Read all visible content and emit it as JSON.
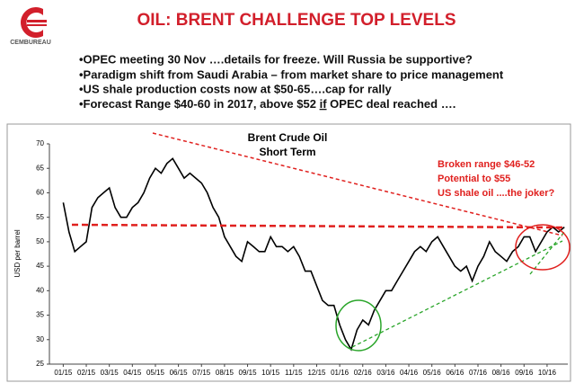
{
  "logo": "CEMBUREAU",
  "header": {
    "title": "OIL: BRENT CHALLENGE TOP LEVELS"
  },
  "bullets": [
    "•OPEC meeting 30 Nov ….details for freeze. Will Russia be supportive?",
    "•Paradigm shift from Saudi Arabia – from market share to price management",
    "•US shale production costs now at $50-65….cap for rally",
    {
      "before": "•Forecast Range $40-60  in  2017, above $52 ",
      "emphasis": "if",
      "after": " OPEC deal reached …."
    }
  ],
  "chart_data": {
    "type": "line",
    "title": "Brent Crude Oil",
    "subtitle": "Short Term",
    "y_label": "USD per barrel",
    "annotations": [
      "Broken range $46-52",
      "Potential to $55",
      "US shale oil ....the joker?"
    ],
    "x": [
      0,
      0.25,
      0.5,
      0.75,
      1,
      1.25,
      1.5,
      1.75,
      2,
      2.25,
      2.5,
      2.75,
      3,
      3.25,
      3.5,
      3.75,
      4,
      4.25,
      4.5,
      4.75,
      5,
      5.25,
      5.5,
      5.75,
      6,
      6.25,
      6.5,
      6.75,
      7,
      7.25,
      7.5,
      7.75,
      8,
      8.25,
      8.5,
      8.75,
      9,
      9.25,
      9.5,
      9.75,
      10,
      10.25,
      10.5,
      10.75,
      11,
      11.25,
      11.5,
      11.75,
      12,
      12.25,
      12.5,
      12.75,
      13,
      13.25,
      13.5,
      13.75,
      14,
      14.25,
      14.5,
      14.75,
      15,
      15.25,
      15.5,
      15.75,
      16,
      16.25,
      16.5,
      16.75,
      17,
      17.25,
      17.5,
      17.75,
      18,
      18.25,
      18.5,
      18.75,
      19,
      19.25,
      19.5,
      19.75,
      20,
      20.25,
      20.5,
      20.75,
      21,
      21.25,
      21.5,
      21.75
    ],
    "series": [
      {
        "name": "Brent",
        "color": "#000000",
        "values": [
          58,
          52,
          48,
          49,
          50,
          57,
          59,
          60,
          61,
          57,
          55,
          55,
          57,
          58,
          60,
          63,
          65,
          64,
          66,
          67,
          65,
          63,
          64,
          63,
          62,
          60,
          57,
          55,
          51,
          49,
          47,
          46,
          50,
          49,
          48,
          48,
          51,
          49,
          49,
          48,
          49,
          47,
          44,
          44,
          41,
          38,
          37,
          37,
          33,
          30,
          28,
          32,
          34,
          33,
          36,
          38,
          40,
          40,
          42,
          44,
          46,
          48,
          49,
          48,
          50,
          51,
          49,
          47,
          45,
          44,
          45,
          42,
          45,
          47,
          50,
          48,
          47,
          46,
          48,
          49,
          51,
          51,
          48,
          50,
          52,
          53,
          52,
          53
        ]
      }
    ],
    "xlim": [
      -0.6,
      21.9
    ],
    "xticks": [
      {
        "value": 0,
        "label": "01/15"
      },
      {
        "value": 1,
        "label": "02/15"
      },
      {
        "value": 2,
        "label": "03/15"
      },
      {
        "value": 3,
        "label": "04/15"
      },
      {
        "value": 4,
        "label": "05/15"
      },
      {
        "value": 5,
        "label": "06/15"
      },
      {
        "value": 6,
        "label": "07/15"
      },
      {
        "value": 7,
        "label": "08/15"
      },
      {
        "value": 8,
        "label": "09/15"
      },
      {
        "value": 9,
        "label": "10/15"
      },
      {
        "value": 10,
        "label": "11/15"
      },
      {
        "value": 11,
        "label": "12/15"
      },
      {
        "value": 12,
        "label": "01/16"
      },
      {
        "value": 13,
        "label": "02/16"
      },
      {
        "value": 14,
        "label": "03/16"
      },
      {
        "value": 15,
        "label": "04/16"
      },
      {
        "value": 16,
        "label": "05/16"
      },
      {
        "value": 17,
        "label": "06/16"
      },
      {
        "value": 18,
        "label": "07/16"
      },
      {
        "value": 19,
        "label": "08/16"
      },
      {
        "value": 20,
        "label": "09/16"
      },
      {
        "value": 21,
        "label": "10/16"
      }
    ],
    "ylim": [
      25,
      70
    ],
    "yticks": [
      25,
      30,
      35,
      40,
      45,
      50,
      55,
      60,
      65,
      70
    ],
    "grid": false
  }
}
